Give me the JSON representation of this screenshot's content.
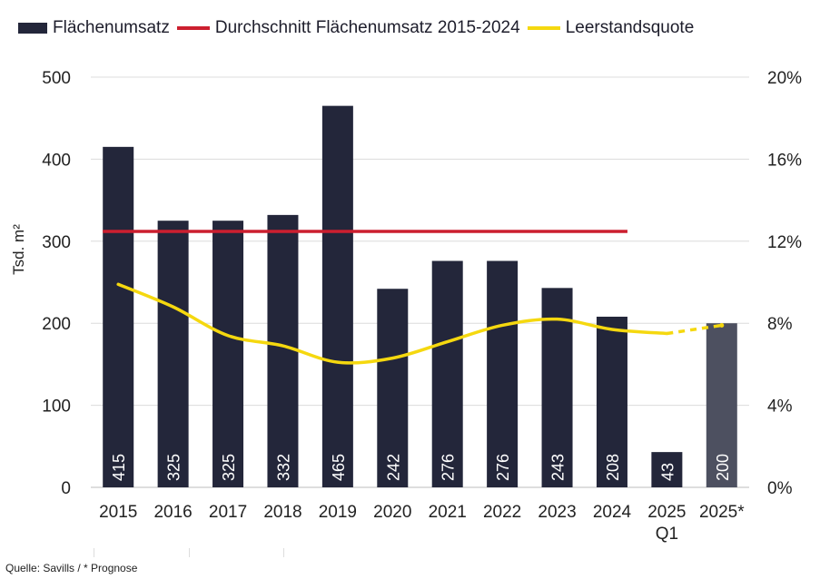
{
  "legend": {
    "bar": "Flächenumsatz",
    "avg": "Durchschnitt Flächenumsatz 2015-2024",
    "vacancy": "Leerstandsquote"
  },
  "source": "Quelle: Savills / * Prognose",
  "colors": {
    "bar": "#23263a",
    "bar_forecast": "#4d5060",
    "avg_line": "#cc1f2f",
    "vacancy_line": "#f5d80f",
    "grid": "#dcdcdc"
  },
  "chart_data": {
    "type": "bar",
    "categories": [
      "2015",
      "2016",
      "2017",
      "2018",
      "2019",
      "2020",
      "2021",
      "2022",
      "2023",
      "2024",
      "2025 Q1",
      "2025*"
    ],
    "category_labels": [
      [
        "2015"
      ],
      [
        "2016"
      ],
      [
        "2017"
      ],
      [
        "2018"
      ],
      [
        "2019"
      ],
      [
        "2020"
      ],
      [
        "2021"
      ],
      [
        "2022"
      ],
      [
        "2023"
      ],
      [
        "2024"
      ],
      [
        "2025",
        "Q1"
      ],
      [
        "2025*"
      ]
    ],
    "values": [
      415,
      325,
      325,
      332,
      465,
      242,
      276,
      276,
      243,
      208,
      43,
      200
    ],
    "value_labels": [
      "415",
      "325",
      "325",
      "332",
      "465",
      "242",
      "276",
      "276",
      "243",
      "208",
      "43",
      "200"
    ],
    "forecast_index": 11,
    "average": {
      "value": 312,
      "from_index": 0,
      "to_index": 9
    },
    "vacancy": {
      "values": [
        9.9,
        8.8,
        7.4,
        6.9,
        6.1,
        6.3,
        7.1,
        7.9,
        8.2,
        7.7,
        7.5,
        7.9
      ],
      "dashed_from_index": 10
    },
    "ylabel": "Tsd. m²",
    "ylim": [
      0,
      500
    ],
    "y_ticks": [
      0,
      100,
      200,
      300,
      400,
      500
    ],
    "y_tick_labels": [
      "0",
      "100",
      "200",
      "300",
      "400",
      "500"
    ],
    "y2lim": [
      0,
      20
    ],
    "y2_ticks": [
      0,
      4,
      8,
      12,
      16,
      20
    ],
    "y2_tick_labels": [
      "0%",
      "4%",
      "8%",
      "12%",
      "16%",
      "20%"
    ],
    "grid": true,
    "legend_position": "top-left"
  }
}
